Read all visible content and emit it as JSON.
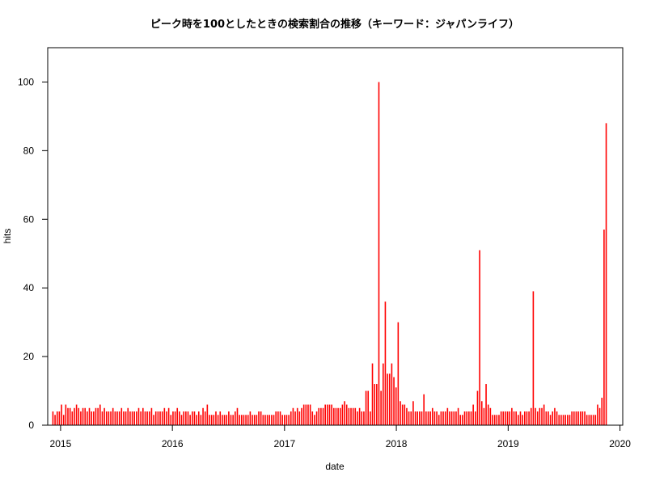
{
  "chart_data": {
    "type": "bar",
    "title": "ピーク時を100としたときの検索割合の推移（キーワード：ジャパンライフ）",
    "xlabel": "date",
    "ylabel": "hits",
    "xlim": [
      "2014-11-20",
      "2020-01-10"
    ],
    "ylim": [
      0,
      110
    ],
    "x_ticks": [
      "2015",
      "2016",
      "2017",
      "2018",
      "2019",
      "2020"
    ],
    "y_ticks": [
      0,
      20,
      40,
      60,
      80,
      100
    ],
    "x_tick_dates": [
      "2015-01-01",
      "2016-01-01",
      "2017-01-01",
      "2018-01-01",
      "2019-01-01",
      "2020-01-01"
    ],
    "bar_color": "#ff0000",
    "x_start": "2014-12-07",
    "x_step_days": 7,
    "values": [
      4,
      3,
      4,
      4,
      6,
      3,
      6,
      5,
      5,
      4,
      5,
      6,
      5,
      4,
      5,
      5,
      4,
      5,
      4,
      4,
      5,
      5,
      6,
      4,
      5,
      4,
      4,
      4,
      5,
      4,
      4,
      4,
      5,
      4,
      4,
      5,
      4,
      4,
      4,
      4,
      5,
      4,
      5,
      4,
      4,
      4,
      5,
      3,
      4,
      4,
      4,
      4,
      5,
      4,
      5,
      3,
      4,
      4,
      5,
      4,
      3,
      4,
      4,
      4,
      3,
      4,
      4,
      3,
      4,
      3,
      5,
      4,
      6,
      3,
      3,
      3,
      4,
      3,
      4,
      3,
      3,
      3,
      4,
      3,
      3,
      4,
      5,
      3,
      3,
      3,
      3,
      3,
      4,
      3,
      3,
      3,
      4,
      4,
      3,
      3,
      3,
      3,
      3,
      3,
      4,
      4,
      4,
      3,
      3,
      3,
      3,
      4,
      5,
      4,
      5,
      4,
      5,
      6,
      6,
      6,
      6,
      4,
      3,
      4,
      5,
      5,
      5,
      6,
      6,
      6,
      6,
      5,
      5,
      5,
      5,
      6,
      7,
      6,
      5,
      5,
      5,
      5,
      4,
      5,
      4,
      4,
      10,
      10,
      4,
      18,
      12,
      12,
      100,
      10,
      18,
      36,
      15,
      15,
      18,
      14,
      11,
      30,
      7,
      6,
      6,
      5,
      4,
      4,
      7,
      4,
      4,
      4,
      4,
      9,
      4,
      4,
      4,
      5,
      4,
      4,
      3,
      4,
      4,
      4,
      5,
      4,
      4,
      4,
      4,
      5,
      3,
      3,
      4,
      4,
      4,
      4,
      6,
      4,
      10,
      51,
      7,
      5,
      12,
      6,
      5,
      3,
      3,
      3,
      3,
      4,
      4,
      4,
      4,
      4,
      5,
      4,
      4,
      3,
      4,
      3,
      4,
      4,
      4,
      5,
      39,
      5,
      4,
      5,
      5,
      6,
      4,
      4,
      3,
      4,
      5,
      4,
      3,
      3,
      3,
      3,
      3,
      3,
      4,
      4,
      4,
      4,
      4,
      4,
      4,
      3,
      3,
      3,
      3,
      3,
      6,
      5,
      8,
      57,
      88
    ]
  }
}
